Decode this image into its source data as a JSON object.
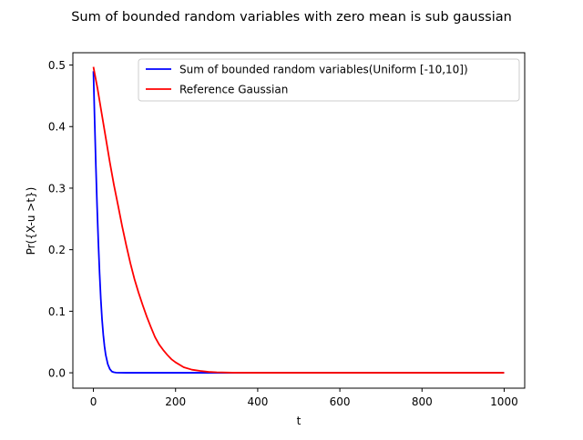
{
  "chart_data": {
    "type": "line",
    "title": "Sum of bounded random variables with zero mean is sub gaussian",
    "xlabel": "t",
    "ylabel": "Pr({X-u >t})",
    "xlim": [
      -50,
      1050
    ],
    "ylim": [
      -0.025,
      0.52
    ],
    "xticks": [
      0,
      200,
      400,
      600,
      800,
      1000
    ],
    "xtick_labels": [
      "0",
      "200",
      "400",
      "600",
      "800",
      "1000"
    ],
    "yticks": [
      0.0,
      0.1,
      0.2,
      0.3,
      0.4,
      0.5
    ],
    "ytick_labels": [
      "0.0",
      "0.1",
      "0.2",
      "0.3",
      "0.4",
      "0.5"
    ],
    "grid": false,
    "legend_position": "top-right",
    "series": [
      {
        "name": "Sum of bounded random variables(Uniform [-10,10])",
        "color": "#0000ff",
        "x": [
          0,
          3,
          6,
          9,
          12,
          15,
          18,
          21,
          24,
          27,
          30,
          35,
          40,
          45,
          50,
          55,
          60,
          80,
          100,
          150,
          200,
          300,
          400,
          500,
          600,
          700,
          800,
          900,
          1000
        ],
        "y": [
          0.49,
          0.41,
          0.336,
          0.27,
          0.212,
          0.162,
          0.12,
          0.087,
          0.062,
          0.043,
          0.029,
          0.014,
          0.006,
          0.002,
          0.0008,
          0.0003,
          0.0001,
          0.0,
          0.0,
          0.0,
          0.0,
          0.0,
          0.0,
          0.0,
          0.0,
          0.0,
          0.0,
          0.0,
          0.0
        ]
      },
      {
        "name": "Reference Gaussian",
        "color": "#ff0000",
        "x": [
          0,
          10,
          20,
          30,
          40,
          50,
          60,
          70,
          80,
          90,
          100,
          110,
          120,
          130,
          140,
          150,
          160,
          170,
          180,
          190,
          200,
          220,
          240,
          260,
          280,
          300,
          340,
          400,
          500,
          600,
          700,
          800,
          900,
          1000
        ],
        "y": [
          0.497,
          0.462,
          0.422,
          0.382,
          0.342,
          0.305,
          0.272,
          0.238,
          0.207,
          0.178,
          0.152,
          0.13,
          0.11,
          0.091,
          0.074,
          0.058,
          0.046,
          0.037,
          0.029,
          0.022,
          0.017,
          0.009,
          0.005,
          0.003,
          0.0015,
          0.0008,
          0.0002,
          0.0,
          0.0,
          0.0,
          0.0,
          0.0,
          0.0,
          0.0
        ]
      }
    ]
  }
}
